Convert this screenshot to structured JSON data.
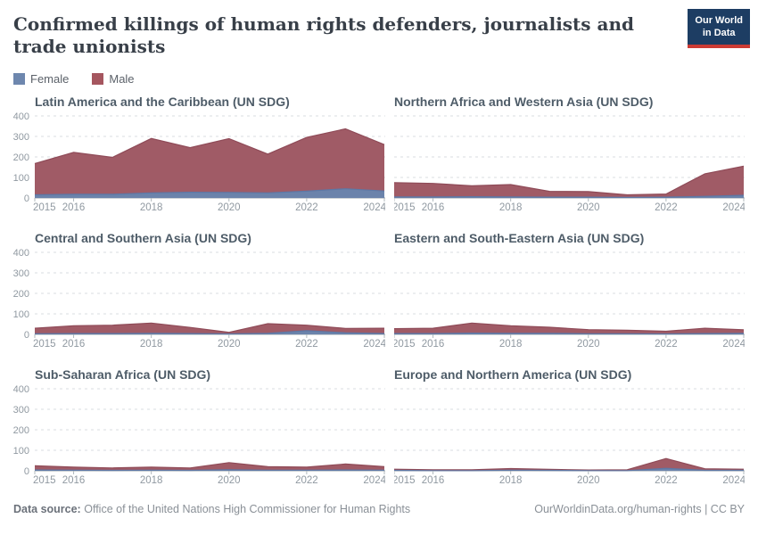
{
  "header": {
    "title": "Confirmed killings of human rights defenders, journalists and trade unionists",
    "logo": {
      "line1": "Our World",
      "line2": "in Data"
    }
  },
  "legend": {
    "items": [
      {
        "label": "Female",
        "color": "#6e87ae"
      },
      {
        "label": "Male",
        "color": "#a5565f"
      }
    ]
  },
  "colors": {
    "female_fill": "#6b83ab",
    "male_fill": "#a05b66",
    "female_stroke": "#5d77a5",
    "male_stroke": "#8f4b58",
    "grid": "#dadee1",
    "baseline": "#9ba4ab",
    "tick": "#b0b8bd",
    "axis_text": "#9099a1",
    "logo_bg": "#1d3d63",
    "logo_accent": "#cc3b34"
  },
  "chart_data": [
    {
      "type": "area",
      "stacked": true,
      "title": "Latin America and the Caribbean (UN SDG)",
      "x": [
        2015,
        2016,
        2017,
        2018,
        2019,
        2020,
        2021,
        2022,
        2023,
        2024
      ],
      "series": [
        {
          "name": "Female",
          "values": [
            15,
            18,
            18,
            25,
            28,
            27,
            25,
            33,
            45,
            34
          ]
        },
        {
          "name": "Male",
          "values": [
            153,
            204,
            180,
            265,
            217,
            262,
            189,
            262,
            292,
            226
          ]
        }
      ],
      "ylim": [
        0,
        400
      ],
      "yticks": [
        0,
        100,
        200,
        300,
        400
      ],
      "xticks": [
        2015,
        2016,
        2018,
        2020,
        2022,
        2024
      ],
      "show_y_labels": true,
      "grid": "dashed"
    },
    {
      "type": "area",
      "stacked": true,
      "title": "Northern Africa and Western Asia (UN SDG)",
      "x": [
        2015,
        2016,
        2017,
        2018,
        2019,
        2020,
        2021,
        2022,
        2023,
        2024
      ],
      "series": [
        {
          "name": "Female",
          "values": [
            5,
            5,
            6,
            5,
            4,
            4,
            3,
            4,
            8,
            13
          ]
        },
        {
          "name": "Male",
          "values": [
            70,
            66,
            53,
            60,
            28,
            27,
            12,
            15,
            110,
            142
          ]
        }
      ],
      "ylim": [
        0,
        400
      ],
      "yticks": [
        0,
        100,
        200,
        300,
        400
      ],
      "xticks": [
        2015,
        2016,
        2018,
        2020,
        2022,
        2024
      ],
      "show_y_labels": false,
      "grid": "dashed"
    },
    {
      "type": "area",
      "stacked": true,
      "title": "Central and Southern Asia (UN SDG)",
      "x": [
        2015,
        2016,
        2017,
        2018,
        2019,
        2020,
        2021,
        2022,
        2023,
        2024
      ],
      "series": [
        {
          "name": "Female",
          "values": [
            3,
            4,
            4,
            5,
            4,
            2,
            5,
            18,
            8,
            4
          ]
        },
        {
          "name": "Male",
          "values": [
            27,
            38,
            41,
            50,
            30,
            8,
            47,
            27,
            21,
            26
          ]
        }
      ],
      "ylim": [
        0,
        400
      ],
      "yticks": [
        0,
        100,
        200,
        300,
        400
      ],
      "xticks": [
        2015,
        2016,
        2018,
        2020,
        2022,
        2024
      ],
      "show_y_labels": true,
      "grid": "dashed"
    },
    {
      "type": "area",
      "stacked": true,
      "title": "Eastern and South-Eastern Asia (UN SDG)",
      "x": [
        2015,
        2016,
        2017,
        2018,
        2019,
        2020,
        2021,
        2022,
        2023,
        2024
      ],
      "series": [
        {
          "name": "Female",
          "values": [
            4,
            4,
            6,
            5,
            5,
            3,
            3,
            2,
            4,
            5
          ]
        },
        {
          "name": "Male",
          "values": [
            24,
            26,
            49,
            37,
            30,
            20,
            17,
            13,
            26,
            17
          ]
        }
      ],
      "ylim": [
        0,
        400
      ],
      "yticks": [
        0,
        100,
        200,
        300,
        400
      ],
      "xticks": [
        2015,
        2016,
        2018,
        2020,
        2022,
        2024
      ],
      "show_y_labels": false,
      "grid": "dashed"
    },
    {
      "type": "area",
      "stacked": true,
      "title": "Sub-Saharan Africa (UN SDG)",
      "x": [
        2015,
        2016,
        2017,
        2018,
        2019,
        2020,
        2021,
        2022,
        2023,
        2024
      ],
      "series": [
        {
          "name": "Female",
          "values": [
            4,
            3,
            2,
            3,
            2,
            5,
            3,
            3,
            4,
            3
          ]
        },
        {
          "name": "Male",
          "values": [
            21,
            15,
            12,
            15,
            12,
            35,
            17,
            15,
            29,
            17
          ]
        }
      ],
      "ylim": [
        0,
        400
      ],
      "yticks": [
        0,
        100,
        200,
        300,
        400
      ],
      "xticks": [
        2015,
        2016,
        2018,
        2020,
        2022,
        2024
      ],
      "show_y_labels": true,
      "grid": "dashed"
    },
    {
      "type": "area",
      "stacked": true,
      "title": "Europe and Northern America (UN SDG)",
      "x": [
        2015,
        2016,
        2017,
        2018,
        2019,
        2020,
        2021,
        2022,
        2023,
        2024
      ],
      "series": [
        {
          "name": "Female",
          "values": [
            2,
            1,
            1,
            3,
            2,
            1,
            1,
            12,
            2,
            2
          ]
        },
        {
          "name": "Male",
          "values": [
            6,
            4,
            4,
            8,
            5,
            3,
            4,
            48,
            8,
            6
          ]
        }
      ],
      "ylim": [
        0,
        400
      ],
      "yticks": [
        0,
        100,
        200,
        300,
        400
      ],
      "xticks": [
        2015,
        2016,
        2018,
        2020,
        2022,
        2024
      ],
      "show_y_labels": false,
      "grid": "dashed"
    }
  ],
  "footer": {
    "source_label": "Data source:",
    "source_text": "Office of the United Nations High Commissioner for Human Rights",
    "url": "OurWorldinData.org/human-rights",
    "separator": "|",
    "license": "CC BY"
  }
}
